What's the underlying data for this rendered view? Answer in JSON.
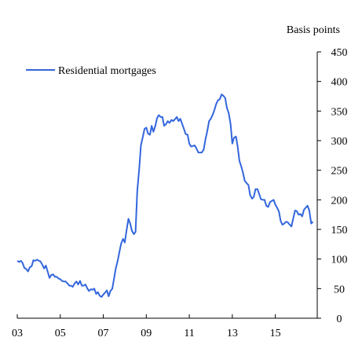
{
  "chart_data": {
    "type": "line",
    "title": "",
    "xlabel": "",
    "ylabel": "Basis points",
    "xlim": [
      2003.0,
      2016.95
    ],
    "ylim": [
      0,
      450
    ],
    "grid": false,
    "legend_position": "top-left",
    "x_ticks": [
      {
        "value": 2003,
        "label": "03"
      },
      {
        "value": 2005,
        "label": "05"
      },
      {
        "value": 2007,
        "label": "07"
      },
      {
        "value": 2009,
        "label": "09"
      },
      {
        "value": 2011,
        "label": "11"
      },
      {
        "value": 2013,
        "label": "13"
      },
      {
        "value": 2015,
        "label": "15"
      }
    ],
    "y_ticks": [
      0,
      50,
      100,
      150,
      200,
      250,
      300,
      350,
      400,
      450
    ],
    "series": [
      {
        "name": "Residential mortgages",
        "color": "#3366dd",
        "points": [
          [
            2003.0,
            97
          ],
          [
            2003.08,
            95
          ],
          [
            2003.17,
            97
          ],
          [
            2003.25,
            93
          ],
          [
            2003.33,
            85
          ],
          [
            2003.42,
            83
          ],
          [
            2003.5,
            79
          ],
          [
            2003.58,
            86
          ],
          [
            2003.67,
            88
          ],
          [
            2003.75,
            98
          ],
          [
            2003.83,
            97
          ],
          [
            2003.92,
            99
          ],
          [
            2004.0,
            97
          ],
          [
            2004.08,
            96
          ],
          [
            2004.17,
            90
          ],
          [
            2004.25,
            84
          ],
          [
            2004.33,
            89
          ],
          [
            2004.42,
            78
          ],
          [
            2004.5,
            68
          ],
          [
            2004.58,
            73
          ],
          [
            2004.67,
            74
          ],
          [
            2004.75,
            70
          ],
          [
            2004.83,
            70
          ],
          [
            2004.92,
            67
          ],
          [
            2005.0,
            66
          ],
          [
            2005.08,
            63
          ],
          [
            2005.17,
            62
          ],
          [
            2005.25,
            62
          ],
          [
            2005.33,
            59
          ],
          [
            2005.42,
            55
          ],
          [
            2005.5,
            55
          ],
          [
            2005.58,
            53
          ],
          [
            2005.67,
            59
          ],
          [
            2005.75,
            62
          ],
          [
            2005.83,
            57
          ],
          [
            2005.92,
            63
          ],
          [
            2006.0,
            55
          ],
          [
            2006.08,
            55
          ],
          [
            2006.17,
            57
          ],
          [
            2006.25,
            51
          ],
          [
            2006.33,
            46
          ],
          [
            2006.42,
            49
          ],
          [
            2006.5,
            48
          ],
          [
            2006.58,
            50
          ],
          [
            2006.67,
            41
          ],
          [
            2006.75,
            44
          ],
          [
            2006.83,
            38
          ],
          [
            2006.92,
            36
          ],
          [
            2007.0,
            40
          ],
          [
            2007.08,
            43
          ],
          [
            2007.17,
            47
          ],
          [
            2007.25,
            37
          ],
          [
            2007.33,
            46
          ],
          [
            2007.42,
            50
          ],
          [
            2007.5,
            67
          ],
          [
            2007.58,
            84
          ],
          [
            2007.67,
            97
          ],
          [
            2007.75,
            112
          ],
          [
            2007.83,
            126
          ],
          [
            2007.92,
            134
          ],
          [
            2008.0,
            128
          ],
          [
            2008.08,
            148
          ],
          [
            2008.17,
            168
          ],
          [
            2008.25,
            160
          ],
          [
            2008.33,
            148
          ],
          [
            2008.42,
            142
          ],
          [
            2008.5,
            146
          ],
          [
            2008.58,
            215
          ],
          [
            2008.67,
            252
          ],
          [
            2008.75,
            292
          ],
          [
            2008.83,
            305
          ],
          [
            2008.92,
            320
          ],
          [
            2009.0,
            322
          ],
          [
            2009.08,
            312
          ],
          [
            2009.17,
            310
          ],
          [
            2009.25,
            325
          ],
          [
            2009.33,
            315
          ],
          [
            2009.42,
            325
          ],
          [
            2009.5,
            338
          ],
          [
            2009.58,
            343
          ],
          [
            2009.67,
            340
          ],
          [
            2009.75,
            340
          ],
          [
            2009.83,
            325
          ],
          [
            2009.92,
            328
          ],
          [
            2010.0,
            333
          ],
          [
            2010.08,
            330
          ],
          [
            2010.17,
            335
          ],
          [
            2010.25,
            333
          ],
          [
            2010.33,
            336
          ],
          [
            2010.42,
            340
          ],
          [
            2010.5,
            333
          ],
          [
            2010.58,
            337
          ],
          [
            2010.67,
            328
          ],
          [
            2010.75,
            320
          ],
          [
            2010.83,
            311
          ],
          [
            2010.92,
            310
          ],
          [
            2011.0,
            295
          ],
          [
            2011.08,
            290
          ],
          [
            2011.17,
            291
          ],
          [
            2011.25,
            292
          ],
          [
            2011.33,
            287
          ],
          [
            2011.42,
            280
          ],
          [
            2011.5,
            280
          ],
          [
            2011.58,
            280
          ],
          [
            2011.67,
            285
          ],
          [
            2011.75,
            302
          ],
          [
            2011.83,
            315
          ],
          [
            2011.92,
            333
          ],
          [
            2012.0,
            337
          ],
          [
            2012.08,
            343
          ],
          [
            2012.17,
            352
          ],
          [
            2012.25,
            362
          ],
          [
            2012.33,
            368
          ],
          [
            2012.42,
            370
          ],
          [
            2012.5,
            378
          ],
          [
            2012.58,
            376
          ],
          [
            2012.67,
            372
          ],
          [
            2012.75,
            355
          ],
          [
            2012.83,
            347
          ],
          [
            2012.92,
            328
          ],
          [
            2013.0,
            295
          ],
          [
            2013.08,
            305
          ],
          [
            2013.17,
            307
          ],
          [
            2013.25,
            290
          ],
          [
            2013.33,
            266
          ],
          [
            2013.42,
            256
          ],
          [
            2013.5,
            245
          ],
          [
            2013.58,
            232
          ],
          [
            2013.67,
            228
          ],
          [
            2013.75,
            225
          ],
          [
            2013.83,
            208
          ],
          [
            2013.92,
            202
          ],
          [
            2014.0,
            205
          ],
          [
            2014.08,
            218
          ],
          [
            2014.17,
            218
          ],
          [
            2014.25,
            210
          ],
          [
            2014.33,
            201
          ],
          [
            2014.42,
            200
          ],
          [
            2014.5,
            200
          ],
          [
            2014.58,
            190
          ],
          [
            2014.67,
            188
          ],
          [
            2014.75,
            196
          ],
          [
            2014.83,
            198
          ],
          [
            2014.92,
            200
          ],
          [
            2015.0,
            192
          ],
          [
            2015.08,
            187
          ],
          [
            2015.17,
            180
          ],
          [
            2015.25,
            164
          ],
          [
            2015.33,
            158
          ],
          [
            2015.42,
            160
          ],
          [
            2015.5,
            163
          ],
          [
            2015.58,
            162
          ],
          [
            2015.67,
            158
          ],
          [
            2015.75,
            155
          ],
          [
            2015.83,
            168
          ],
          [
            2015.92,
            182
          ],
          [
            2016.0,
            181
          ],
          [
            2016.08,
            175
          ],
          [
            2016.17,
            176
          ],
          [
            2016.25,
            172
          ],
          [
            2016.33,
            183
          ],
          [
            2016.42,
            187
          ],
          [
            2016.5,
            190
          ],
          [
            2016.58,
            182
          ],
          [
            2016.67,
            160
          ],
          [
            2016.75,
            163
          ]
        ]
      }
    ]
  }
}
